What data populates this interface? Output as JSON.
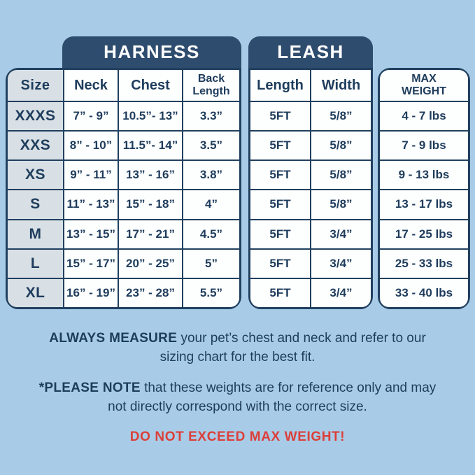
{
  "colors": {
    "page_background": "#a8cce7",
    "tab_background": "#2e4c6e",
    "table_border_navy": "#21405f",
    "text_navy": "#1e3c5c",
    "cell_white": "#fdfefe",
    "size_column_background": "#d8e0e5",
    "warning_red": "#dc3f39"
  },
  "harness": {
    "tab_label": "HARNESS"
  },
  "leash": {
    "tab_label": "LEASH"
  },
  "chart_data": {
    "type": "table",
    "columns": [
      "Size",
      "Neck",
      "Chest",
      "Back Length",
      "Length",
      "Width",
      "MAX WEIGHT"
    ],
    "column_groups": [
      {
        "label": "HARNESS",
        "columns": [
          "Neck",
          "Chest",
          "Back Length"
        ]
      },
      {
        "label": "LEASH",
        "columns": [
          "Length",
          "Width"
        ]
      }
    ],
    "rows": [
      [
        "XXXS",
        "7” - 9”",
        "10.5”- 13”",
        "3.3”",
        "5FT",
        "5/8”",
        "4 - 7 lbs"
      ],
      [
        "XXS",
        "8” - 10”",
        "11.5”- 14”",
        "3.5”",
        "5FT",
        "5/8”",
        "7 - 9 lbs"
      ],
      [
        "XS",
        "9” - 11”",
        "13” - 16”",
        "3.8”",
        "5FT",
        "5/8”",
        "9 - 13 lbs"
      ],
      [
        "S",
        "11” - 13”",
        "15” - 18”",
        "4”",
        "5FT",
        "5/8”",
        "13 - 17 lbs"
      ],
      [
        "M",
        "13” - 15”",
        "17” - 21”",
        "4.5”",
        "5FT",
        "3/4”",
        "17 - 25 lbs"
      ],
      [
        "L",
        "15” - 17”",
        "20” - 25”",
        "5”",
        "5FT",
        "3/4”",
        "25 - 33 lbs"
      ],
      [
        "XL",
        "16” - 19”",
        "23” - 28”",
        "5.5”",
        "5FT",
        "3/4”",
        "33 - 40 lbs"
      ]
    ]
  },
  "notes": {
    "measure_bold": "ALWAYS MEASURE",
    "measure_rest": " your pet’s chest and neck and refer to our sizing chart for the best fit.",
    "please_bold": "*PLEASE NOTE",
    "please_rest": " that these weights are for reference only and may not directly correspond with the correct size.",
    "warning": "DO NOT EXCEED MAX WEIGHT!"
  }
}
